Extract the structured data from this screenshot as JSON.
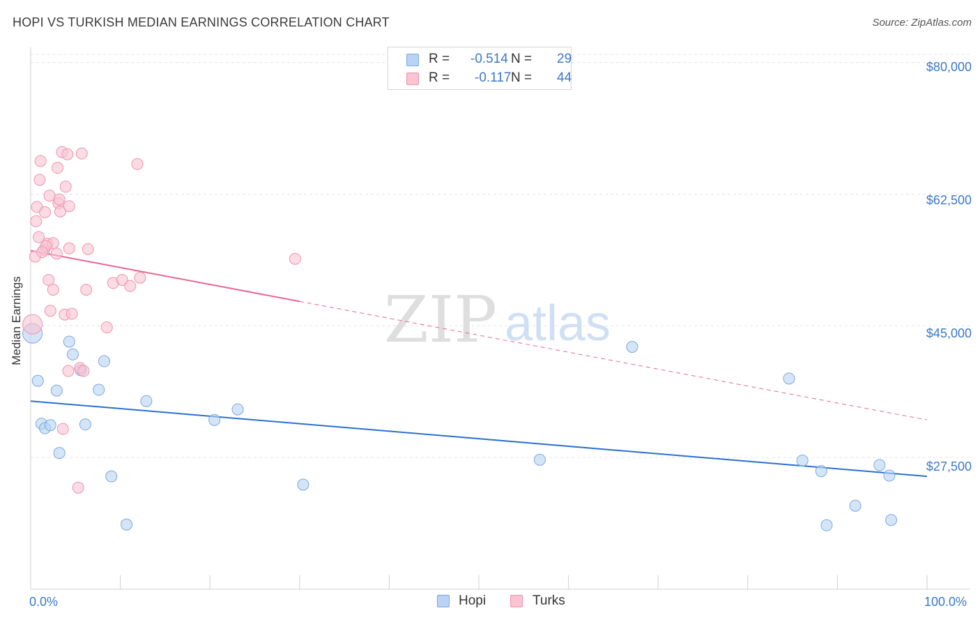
{
  "title": "HOPI VS TURKISH MEDIAN EARNINGS CORRELATION CHART",
  "source": "Source: ZipAtlas.com",
  "watermark": {
    "zip": "ZIP",
    "atlas": "atlas"
  },
  "colors": {
    "hopi_fill": "#b9d3f4",
    "hopi_stroke": "#7aa7e0",
    "hopi_line": "#2a6fcf",
    "turks_fill": "#f9c3d2",
    "turks_stroke": "#ee93ae",
    "turks_line": "#e8678f",
    "grid": "#e3e3e3",
    "axis_text": "#3a78c9"
  },
  "stats": {
    "r_label": "R =",
    "n_label": "N =",
    "rows": [
      {
        "series": "Hopi",
        "r": "-0.514",
        "n": "29"
      },
      {
        "series": "Turks",
        "r": "-0.117",
        "n": "44"
      }
    ]
  },
  "legend": [
    "Hopi",
    "Turks"
  ],
  "chart_data": {
    "type": "scatter",
    "title": "HOPI VS TURKISH MEDIAN EARNINGS CORRELATION CHART",
    "xlabel": "",
    "ylabel": "Median Earnings",
    "xlim": [
      0,
      100
    ],
    "ylim": [
      10000,
      82000
    ],
    "x_tick_labels": [
      "0.0%",
      "100.0%"
    ],
    "y_ticks": [
      27500,
      45000,
      62500,
      80000
    ],
    "y_tick_labels": [
      "$27,500",
      "$45,000",
      "$62,500",
      "$80,000"
    ],
    "grid": true,
    "legend_position": "bottom-center",
    "series": [
      {
        "name": "Hopi",
        "points": [
          [
            0.2,
            44000
          ],
          [
            0.8,
            37700
          ],
          [
            1.2,
            32000
          ],
          [
            1.6,
            31400
          ],
          [
            2.2,
            31800
          ],
          [
            2.9,
            36400
          ],
          [
            3.2,
            28100
          ],
          [
            4.3,
            42900
          ],
          [
            4.7,
            41200
          ],
          [
            5.6,
            39100
          ],
          [
            6.1,
            31900
          ],
          [
            7.6,
            36500
          ],
          [
            8.2,
            40300
          ],
          [
            9.0,
            25000
          ],
          [
            10.7,
            18600
          ],
          [
            12.9,
            35000
          ],
          [
            20.5,
            32500
          ],
          [
            23.1,
            33900
          ],
          [
            30.4,
            23900
          ],
          [
            56.8,
            27200
          ],
          [
            67.1,
            42200
          ],
          [
            84.6,
            38000
          ],
          [
            86.1,
            27100
          ],
          [
            88.2,
            25700
          ],
          [
            88.8,
            18500
          ],
          [
            92.0,
            21100
          ],
          [
            94.7,
            26500
          ],
          [
            95.8,
            25100
          ],
          [
            96.0,
            19200
          ]
        ],
        "trend": {
          "x": [
            0,
            100
          ],
          "y": [
            35000,
            25000
          ],
          "dashed_from": null
        }
      },
      {
        "name": "Turks",
        "points": [
          [
            0.2,
            45200
          ],
          [
            0.5,
            54200
          ],
          [
            0.6,
            58900
          ],
          [
            0.7,
            60800
          ],
          [
            0.9,
            56800
          ],
          [
            1.0,
            64400
          ],
          [
            1.1,
            66900
          ],
          [
            1.5,
            55100
          ],
          [
            1.6,
            60100
          ],
          [
            1.9,
            55900
          ],
          [
            2.0,
            51100
          ],
          [
            2.1,
            62300
          ],
          [
            2.2,
            47000
          ],
          [
            2.5,
            56000
          ],
          [
            2.5,
            49800
          ],
          [
            2.9,
            54600
          ],
          [
            3.0,
            66000
          ],
          [
            3.1,
            61300
          ],
          [
            3.2,
            61800
          ],
          [
            3.3,
            60200
          ],
          [
            3.5,
            68100
          ],
          [
            3.8,
            46500
          ],
          [
            3.9,
            63500
          ],
          [
            4.1,
            67800
          ],
          [
            4.2,
            39000
          ],
          [
            4.3,
            60900
          ],
          [
            4.3,
            55300
          ],
          [
            4.6,
            46600
          ],
          [
            5.5,
            39400
          ],
          [
            5.7,
            67900
          ],
          [
            5.9,
            39000
          ],
          [
            6.2,
            49800
          ],
          [
            6.4,
            55200
          ],
          [
            3.6,
            31300
          ],
          [
            5.3,
            23500
          ],
          [
            8.5,
            44800
          ],
          [
            9.2,
            50700
          ],
          [
            10.2,
            51100
          ],
          [
            11.1,
            50300
          ],
          [
            11.9,
            66500
          ],
          [
            12.2,
            51400
          ],
          [
            29.5,
            53900
          ],
          [
            1.7,
            55600
          ],
          [
            1.3,
            54800
          ]
        ],
        "trend": {
          "x": [
            0,
            100
          ],
          "y": [
            55000,
            32500
          ],
          "dashed_from": 30
        }
      }
    ]
  }
}
